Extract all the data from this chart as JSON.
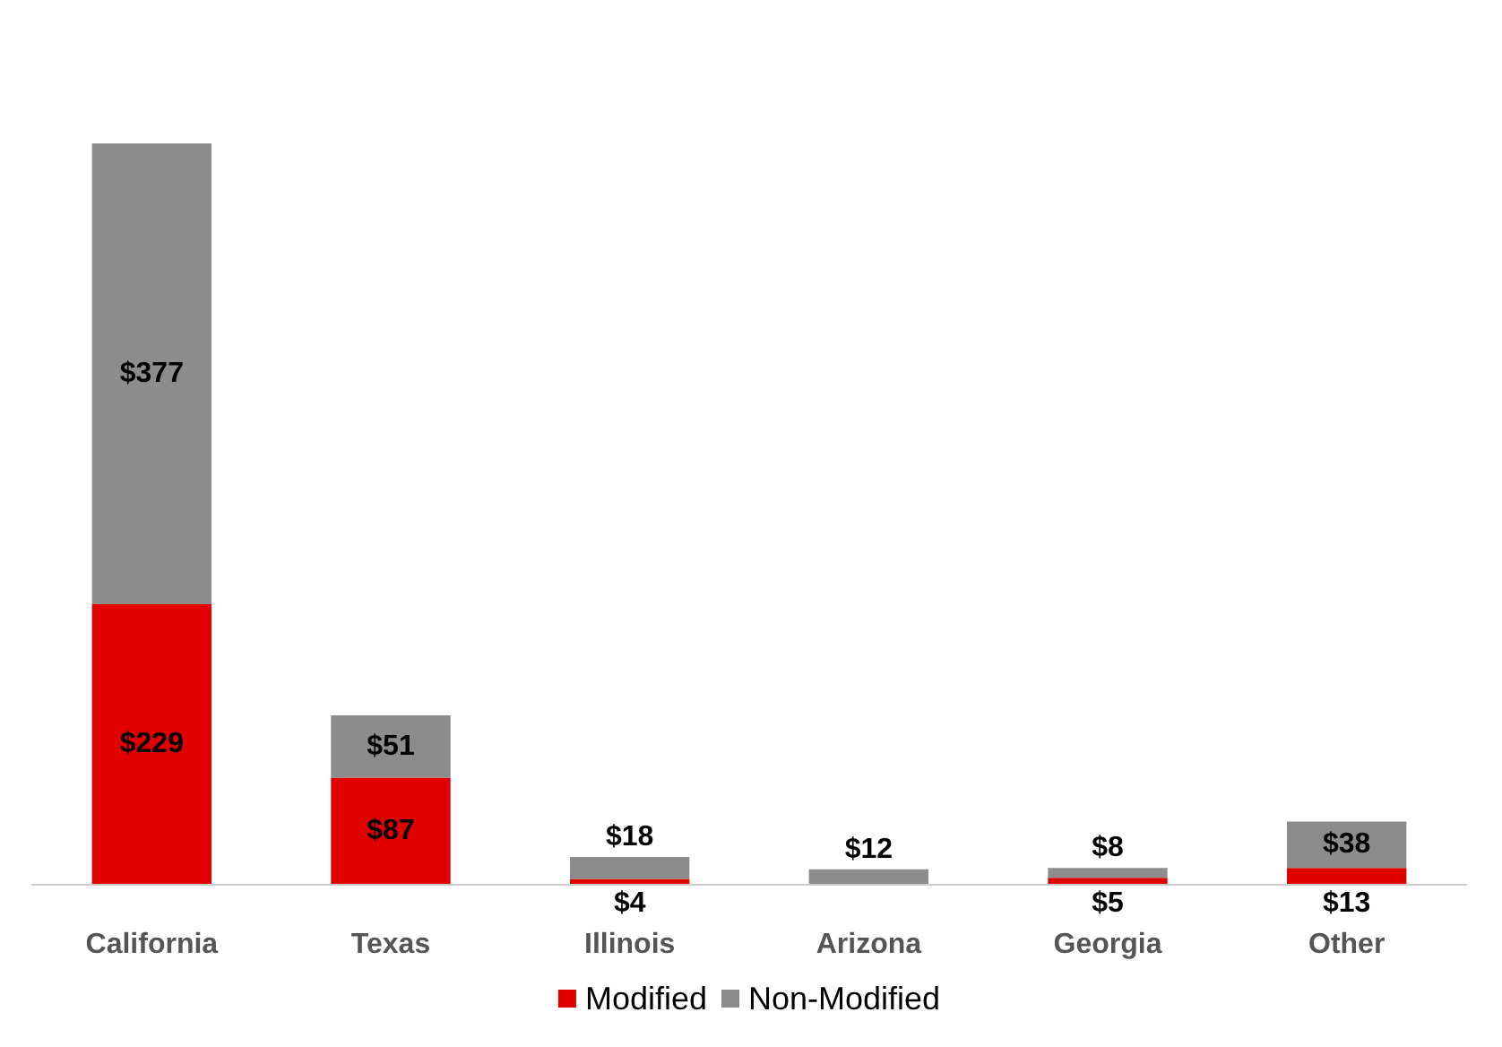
{
  "chart_data": {
    "type": "bar",
    "stacked": true,
    "categories": [
      "California",
      "Texas",
      "Illinois",
      "Arizona",
      "Georgia",
      "Other"
    ],
    "series": [
      {
        "name": "Modified",
        "color": "#e00000",
        "values": [
          229,
          87,
          4,
          null,
          5,
          13
        ],
        "value_labels": [
          "$229",
          "$87",
          "$4",
          null,
          "$5",
          "$13"
        ]
      },
      {
        "name": "Non-Modified",
        "color": "#8c8c8c",
        "values": [
          377,
          51,
          18,
          12,
          8,
          38
        ],
        "value_labels": [
          "$377",
          "$51",
          "$18",
          "$12",
          "$8",
          "$38"
        ]
      }
    ],
    "legend": "bottom",
    "tick_labels": "x"
  }
}
